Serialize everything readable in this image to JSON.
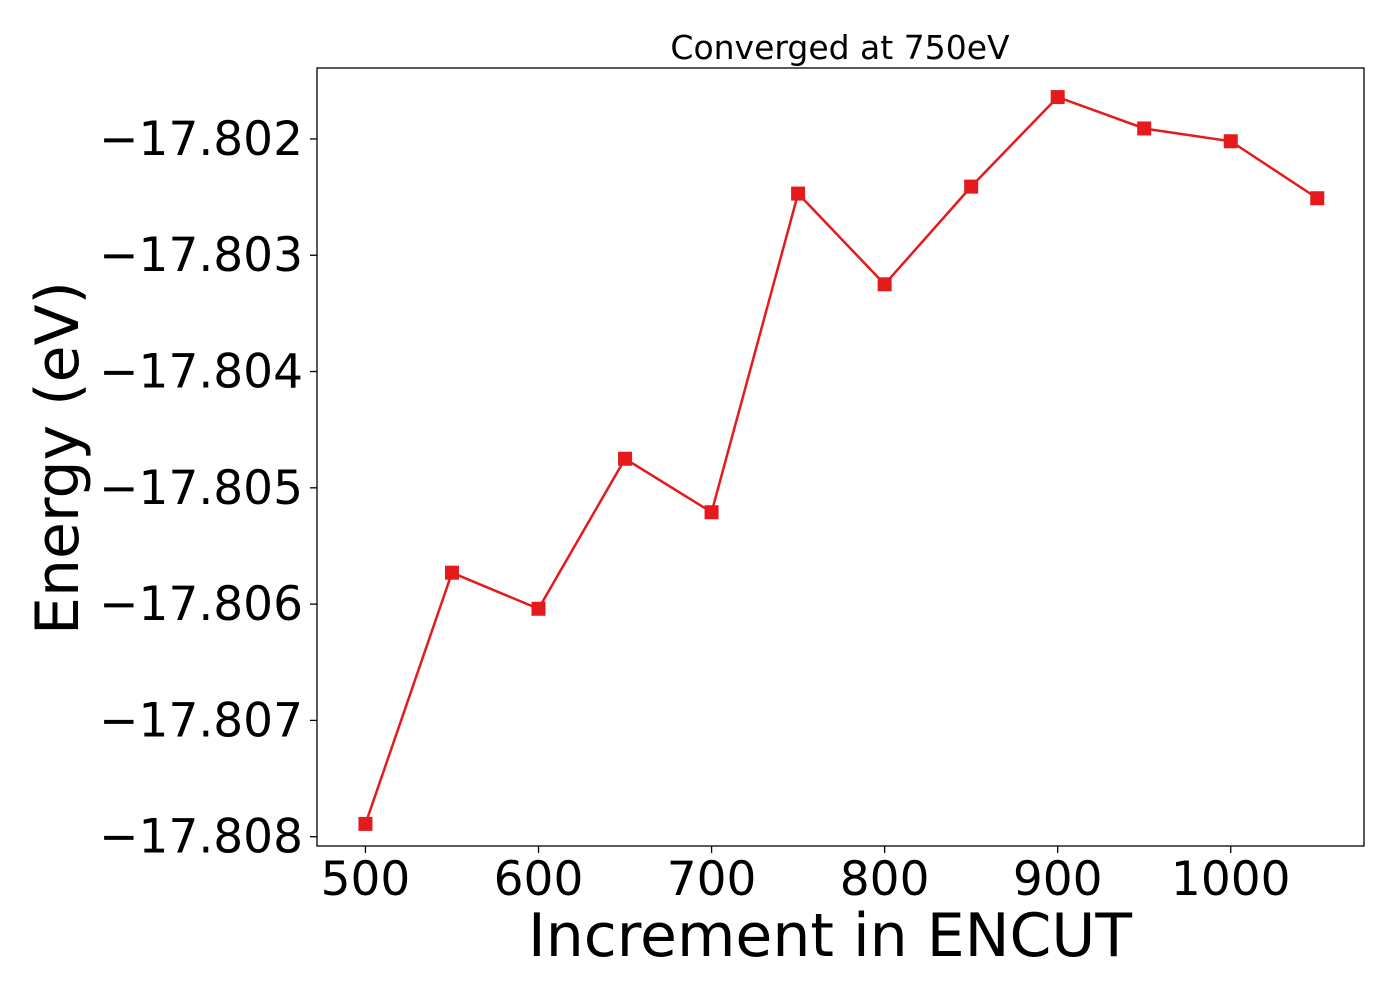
{
  "chart_data": {
    "type": "line",
    "title": "Converged at 750eV",
    "xlabel": "Increment in ENCUT",
    "ylabel": "Energy (eV)",
    "x": [
      500,
      550,
      600,
      650,
      700,
      750,
      800,
      850,
      900,
      950,
      1000,
      1050
    ],
    "series": [
      {
        "values": [
          -17.80789,
          -17.80573,
          -17.80604,
          -17.80475,
          -17.80521,
          -17.80247,
          -17.80325,
          -17.80241,
          -17.80164,
          -17.80191,
          -17.80202,
          -17.80251
        ],
        "color": "#e41a1c",
        "marker": "square"
      }
    ],
    "xlim": [
      472,
      1077
    ],
    "ylim": [
      -17.80808,
      -17.80139
    ],
    "xticks": [
      500,
      600,
      700,
      800,
      900,
      1000
    ],
    "xtick_labels": [
      "500",
      "600",
      "700",
      "800",
      "900",
      "1000"
    ],
    "yticks": [
      -17.802,
      -17.803,
      -17.804,
      -17.805,
      -17.806,
      -17.807,
      -17.808
    ],
    "ytick_labels": [
      "−17.802",
      "−17.803",
      "−17.804",
      "−17.805",
      "−17.806",
      "−17.807",
      "−17.808"
    ],
    "grid": false,
    "legend": false
  }
}
